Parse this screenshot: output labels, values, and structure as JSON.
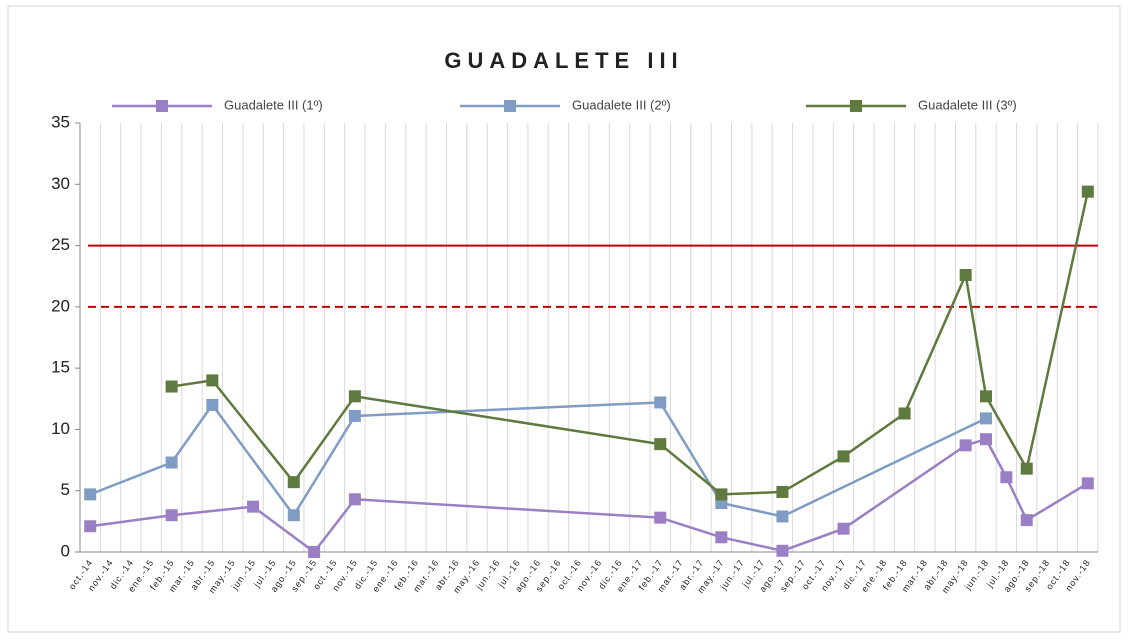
{
  "chart_data": {
    "type": "line",
    "title": "GUADALETE III",
    "categories": [
      "oct.-14",
      "nov.-14",
      "dic.-14",
      "ene.-15",
      "feb.-15",
      "mar.-15",
      "abr.-15",
      "may.-15",
      "jun.-15",
      "jul.-15",
      "ago.-15",
      "sep.-15",
      "oct.-15",
      "nov.-15",
      "dic.-15",
      "ene.-16",
      "feb.-16",
      "mar.-16",
      "abr.-16",
      "may.-16",
      "jun.-16",
      "jul.-16",
      "ago.-16",
      "sep.-16",
      "oct.-16",
      "nov.-16",
      "dic.-16",
      "ene.-17",
      "feb.-17",
      "mar.-17",
      "abr.-17",
      "may.-17",
      "jun.-17",
      "jul.-17",
      "ago.-17",
      "sep.-17",
      "oct.-17",
      "nov.-17",
      "dic.-17",
      "ene.-18",
      "feb.-18",
      "mar.-18",
      "abr.-18",
      "may.-18",
      "jun.-18",
      "jul.-18",
      "ago.-18",
      "sep.-18",
      "oct.-18",
      "nov.-18"
    ],
    "series": [
      {
        "name": "Guadalete III (1º)",
        "color": "#9b7fc4",
        "values": [
          2.1,
          null,
          null,
          null,
          3.0,
          null,
          null,
          null,
          3.7,
          null,
          null,
          0.0,
          null,
          4.3,
          null,
          null,
          null,
          null,
          null,
          null,
          null,
          null,
          null,
          null,
          null,
          null,
          null,
          null,
          2.8,
          null,
          null,
          1.2,
          null,
          null,
          0.1,
          null,
          null,
          1.9,
          null,
          null,
          null,
          null,
          null,
          8.7,
          9.2,
          6.1,
          2.6,
          null,
          null,
          5.6
        ]
      },
      {
        "name": "Guadalete III (2º)",
        "color": "#7f9cc4",
        "values": [
          4.7,
          null,
          null,
          null,
          7.3,
          null,
          12.0,
          null,
          null,
          null,
          3.0,
          null,
          null,
          11.1,
          null,
          null,
          null,
          null,
          null,
          null,
          null,
          null,
          null,
          null,
          null,
          null,
          null,
          null,
          12.2,
          null,
          null,
          4.0,
          null,
          null,
          2.9,
          null,
          null,
          null,
          null,
          null,
          null,
          null,
          null,
          null,
          10.9,
          null,
          null,
          null,
          null,
          null
        ]
      },
      {
        "name": "Guadalete III (3º)",
        "color": "#5e7a3e",
        "values": [
          null,
          null,
          null,
          null,
          13.5,
          null,
          14.0,
          null,
          null,
          null,
          5.7,
          null,
          null,
          12.7,
          null,
          null,
          null,
          null,
          null,
          null,
          null,
          null,
          null,
          null,
          null,
          null,
          null,
          null,
          8.8,
          null,
          null,
          4.7,
          null,
          null,
          4.9,
          null,
          null,
          7.8,
          null,
          null,
          11.3,
          null,
          null,
          22.6,
          12.7,
          null,
          6.8,
          null,
          null,
          29.4
        ]
      }
    ],
    "ylim": [
      0,
      35
    ],
    "yticks": [
      0,
      5,
      10,
      15,
      20,
      25,
      30,
      35
    ],
    "grid": "x",
    "reference_lines": [
      {
        "value": 25,
        "style": "solid",
        "color": "#c00000"
      },
      {
        "value": 20,
        "style": "dashed",
        "color": "#c00000"
      }
    ],
    "legend": "top"
  }
}
